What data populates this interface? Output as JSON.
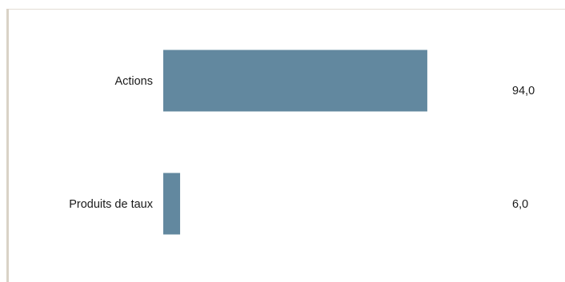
{
  "chart_data": {
    "type": "bar",
    "orientation": "horizontal",
    "categories": [
      "Actions",
      "Produits de taux"
    ],
    "values": [
      94.0,
      6.0
    ],
    "value_labels": [
      "94,0",
      "6,0"
    ],
    "title": "",
    "xlabel": "",
    "ylabel": "",
    "xlim": [
      0,
      100
    ],
    "grid": false,
    "legend": "none",
    "colors": {
      "bar": "#62889f"
    }
  }
}
